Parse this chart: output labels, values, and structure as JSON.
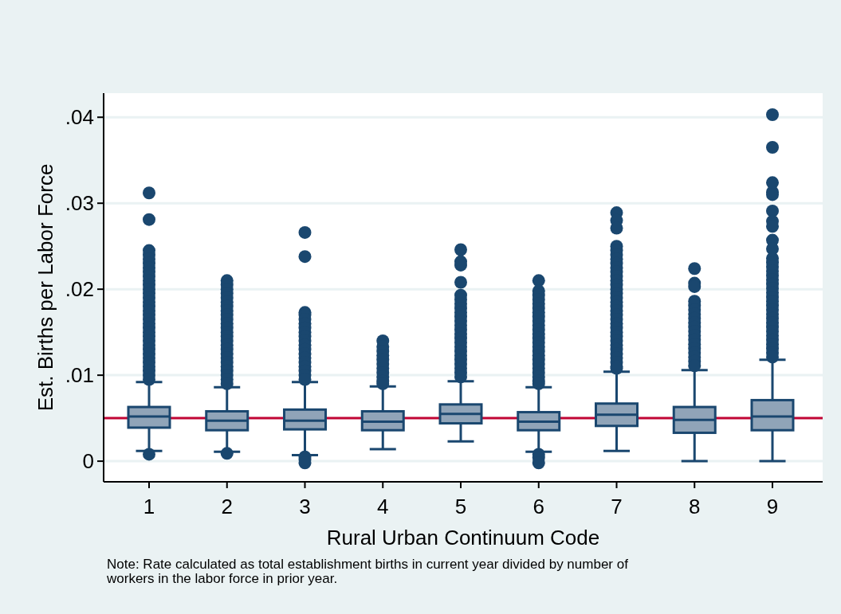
{
  "chart_data": {
    "type": "box",
    "categories": [
      "1",
      "2",
      "3",
      "4",
      "5",
      "6",
      "7",
      "8",
      "9"
    ],
    "xlabel": "Rural Urban Continuum Code",
    "ylabel": "Est. Births per Labor Force",
    "color": "#1a476f",
    "ylim": [
      -0.0024,
      0.0428
    ],
    "yticks": [
      {
        "value": 0,
        "label": "0"
      },
      {
        "value": 0.01,
        "label": ".01"
      },
      {
        "value": 0.02,
        "label": ".02"
      },
      {
        "value": 0.03,
        "label": ".03"
      },
      {
        "value": 0.04,
        "label": ".04"
      }
    ],
    "grid": "y",
    "ref_lines": [
      {
        "axis": "y",
        "value": 0.005,
        "color": "#c10534"
      }
    ],
    "annotations": [
      "Note: Rate calculated as total establishment births in current year divided by number of workers in the labor force in prior year."
    ],
    "boxes": [
      {
        "low": 0.0012,
        "q1": 0.0039,
        "median": 0.0052,
        "q3": 0.0063,
        "high": 0.0092,
        "outliers": [
          0.0008,
          0.0312,
          0.0281,
          0.0245,
          0.024,
          0.0235,
          0.023,
          0.0225,
          0.022,
          0.0215,
          0.021,
          0.0205,
          0.02,
          0.0195,
          0.019,
          0.0185,
          0.018,
          0.0175,
          0.017,
          0.0165,
          0.016,
          0.0155,
          0.015,
          0.0145,
          0.014,
          0.0135,
          0.013,
          0.0125,
          0.012,
          0.0115,
          0.011,
          0.0105,
          0.01,
          0.0095
        ]
      },
      {
        "low": 0.0011,
        "q1": 0.0036,
        "median": 0.0047,
        "q3": 0.0058,
        "high": 0.0086,
        "outliers": [
          0.0009,
          0.021,
          0.0205,
          0.02,
          0.0195,
          0.019,
          0.0185,
          0.018,
          0.0175,
          0.017,
          0.0165,
          0.016,
          0.0155,
          0.015,
          0.0145,
          0.014,
          0.0135,
          0.013,
          0.0125,
          0.012,
          0.0115,
          0.011,
          0.0105,
          0.01,
          0.0095,
          0.009
        ]
      },
      {
        "low": 0.0007,
        "q1": 0.0037,
        "median": 0.0047,
        "q3": 0.006,
        "high": 0.0092,
        "outliers": [
          0.0005,
          0.0002,
          -0.0002,
          0.0266,
          0.0238,
          0.0173,
          0.017,
          0.0165,
          0.016,
          0.0155,
          0.015,
          0.0145,
          0.014,
          0.0135,
          0.013,
          0.0125,
          0.012,
          0.0115,
          0.011,
          0.0105,
          0.01,
          0.0095
        ]
      },
      {
        "low": 0.0014,
        "q1": 0.0036,
        "median": 0.0046,
        "q3": 0.0058,
        "high": 0.0087,
        "outliers": [
          0.014,
          0.0133,
          0.0128,
          0.0123,
          0.0118,
          0.0113,
          0.0108,
          0.0103,
          0.0098,
          0.0093,
          0.009
        ]
      },
      {
        "low": 0.0023,
        "q1": 0.0044,
        "median": 0.0055,
        "q3": 0.0066,
        "high": 0.0093,
        "outliers": [
          0.0246,
          0.0232,
          0.0228,
          0.0208,
          0.0193,
          0.0188,
          0.0183,
          0.0178,
          0.0173,
          0.0168,
          0.0163,
          0.0158,
          0.0153,
          0.0148,
          0.0143,
          0.0138,
          0.0133,
          0.0128,
          0.0123,
          0.0118,
          0.0113,
          0.0108,
          0.0103,
          0.0098
        ]
      },
      {
        "low": 0.0011,
        "q1": 0.0036,
        "median": 0.0046,
        "q3": 0.0057,
        "high": 0.0086,
        "outliers": [
          0.0008,
          0.0004,
          -0.0002,
          0.021,
          0.0198,
          0.0193,
          0.0188,
          0.0183,
          0.0178,
          0.0173,
          0.0168,
          0.0163,
          0.0158,
          0.0153,
          0.0148,
          0.0143,
          0.0138,
          0.0133,
          0.0128,
          0.0123,
          0.0118,
          0.0113,
          0.0108,
          0.0103,
          0.0098,
          0.0093,
          0.009
        ]
      },
      {
        "low": 0.0012,
        "q1": 0.0041,
        "median": 0.0054,
        "q3": 0.0067,
        "high": 0.0104,
        "outliers": [
          0.0289,
          0.028,
          0.0271,
          0.025,
          0.0245,
          0.024,
          0.0235,
          0.023,
          0.0225,
          0.022,
          0.0215,
          0.021,
          0.0205,
          0.02,
          0.0195,
          0.019,
          0.0185,
          0.018,
          0.0175,
          0.017,
          0.0165,
          0.016,
          0.0155,
          0.015,
          0.0145,
          0.014,
          0.0135,
          0.013,
          0.0125,
          0.012,
          0.0115,
          0.011,
          0.0108
        ]
      },
      {
        "low": 0,
        "q1": 0.0033,
        "median": 0.0048,
        "q3": 0.0063,
        "high": 0.0106,
        "outliers": [
          0.0224,
          0.0207,
          0.0203,
          0.0186,
          0.0181,
          0.0176,
          0.0171,
          0.0166,
          0.0161,
          0.0156,
          0.0151,
          0.0146,
          0.0141,
          0.0136,
          0.0131,
          0.0126,
          0.0121,
          0.0116,
          0.0111
        ]
      },
      {
        "low": 0,
        "q1": 0.0036,
        "median": 0.0052,
        "q3": 0.0071,
        "high": 0.0118,
        "outliers": [
          0.0403,
          0.0365,
          0.0324,
          0.0313,
          0.031,
          0.0291,
          0.0279,
          0.0273,
          0.0257,
          0.0247,
          0.0236,
          0.0231,
          0.0226,
          0.0221,
          0.0216,
          0.0211,
          0.0206,
          0.0201,
          0.0196,
          0.0191,
          0.0186,
          0.0181,
          0.0176,
          0.0171,
          0.0166,
          0.0161,
          0.0156,
          0.0151,
          0.0146,
          0.0141,
          0.0136,
          0.0131,
          0.0126,
          0.0121
        ]
      }
    ]
  }
}
